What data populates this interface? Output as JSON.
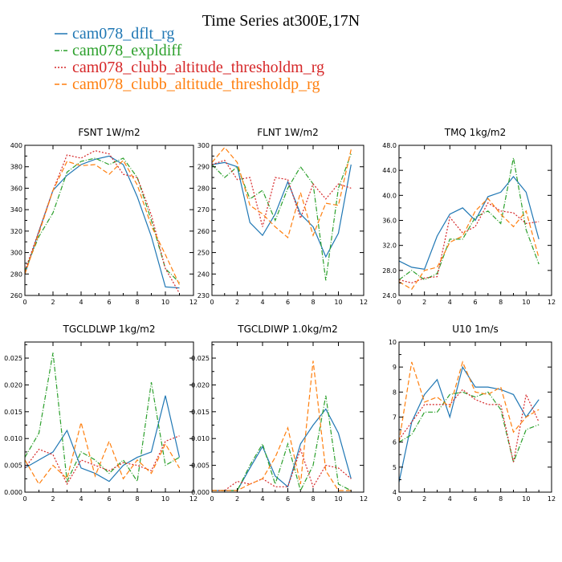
{
  "title": "Time Series at300E,17N",
  "colors": {
    "dflt": "#1f77b4",
    "expl": "#2ca02c",
    "thm": "#d62728",
    "thp": "#ff7f0e"
  },
  "legend": [
    {
      "label": "cam078_dflt_rg",
      "color": "#1f77b4",
      "dash": ""
    },
    {
      "label": "cam078_expldiff",
      "color": "#2ca02c",
      "dash": "6,2,1,2"
    },
    {
      "label": "cam078_clubb_altitude_thresholdm_rg",
      "color": "#d62728",
      "dash": "2,2"
    },
    {
      "label": "cam078_clubb_altitude_thresholdp_rg",
      "color": "#ff7f0e",
      "dash": "6,3"
    }
  ],
  "chart_data": [
    {
      "type": "line",
      "title": "FSNT   1W/m2",
      "xlim": [
        0,
        12
      ],
      "ylim": [
        260,
        400
      ],
      "xticks": [
        "0",
        "2",
        "4",
        "6",
        "8",
        "10",
        "12"
      ],
      "yticks": [
        "260",
        "280",
        "300",
        "320",
        "340",
        "360",
        "380",
        "400"
      ],
      "x": [
        0,
        1,
        2,
        3,
        4,
        5,
        6,
        7,
        8,
        9,
        10,
        11
      ],
      "series": [
        {
          "name": "cam078_dflt_rg",
          "values": [
            280,
            320,
            358,
            372,
            382,
            387,
            390,
            382,
            352,
            315,
            268,
            267
          ]
        },
        {
          "name": "cam078_expldiff",
          "values": [
            283,
            315,
            337,
            375,
            385,
            388,
            382,
            388,
            370,
            330,
            285,
            272
          ]
        },
        {
          "name": "cam078_clubb_altitude_thresholdm_rg",
          "values": [
            283,
            320,
            358,
            391,
            388,
            395,
            392,
            373,
            370,
            335,
            285,
            262
          ]
        },
        {
          "name": "cam078_clubb_altitude_thresholdp_rg",
          "values": [
            280,
            318,
            358,
            385,
            381,
            382,
            373,
            386,
            363,
            325,
            298,
            270
          ]
        }
      ]
    },
    {
      "type": "line",
      "title": "FLNT   1W/m2",
      "xlim": [
        0,
        12
      ],
      "ylim": [
        230,
        300
      ],
      "xticks": [
        "0",
        "2",
        "4",
        "6",
        "8",
        "10",
        "12"
      ],
      "yticks": [
        "230",
        "240",
        "250",
        "260",
        "270",
        "280",
        "290",
        "300"
      ],
      "x": [
        0,
        1,
        2,
        3,
        4,
        5,
        6,
        7,
        8,
        9,
        10,
        11
      ],
      "series": [
        {
          "name": "cam078_dflt_rg",
          "values": [
            291,
            292,
            290,
            264,
            258,
            268,
            283,
            268,
            262,
            248,
            259,
            291
          ]
        },
        {
          "name": "cam078_expldiff",
          "values": [
            291,
            285,
            290,
            275,
            279,
            265,
            280,
            290,
            282,
            237,
            280,
            296
          ]
        },
        {
          "name": "cam078_clubb_altitude_thresholdm_rg",
          "values": [
            291,
            293,
            284,
            285,
            262,
            285,
            284,
            266,
            282,
            275,
            282,
            280
          ]
        },
        {
          "name": "cam078_clubb_altitude_thresholdp_rg",
          "values": [
            292,
            299,
            292,
            272,
            268,
            262,
            257,
            278,
            258,
            273,
            272,
            298
          ]
        }
      ]
    },
    {
      "type": "line",
      "title": "TMQ   1kg/m2",
      "xlim": [
        0,
        12
      ],
      "ylim": [
        24,
        48
      ],
      "xticks": [
        "0",
        "2",
        "4",
        "6",
        "8",
        "10",
        "12"
      ],
      "yticks": [
        "24.0",
        "28.0",
        "32.0",
        "36.0",
        "40.0",
        "44.0",
        "48.0"
      ],
      "x": [
        0,
        1,
        2,
        3,
        4,
        5,
        6,
        7,
        8,
        9,
        10,
        11
      ],
      "series": [
        {
          "name": "cam078_dflt_rg",
          "values": [
            29.5,
            28.5,
            28.2,
            33.5,
            37.0,
            38.0,
            36.0,
            39.8,
            40.5,
            43.0,
            40.5,
            33.0
          ]
        },
        {
          "name": "cam078_expldiff",
          "values": [
            26.5,
            28.0,
            26.5,
            27.5,
            33.0,
            33.0,
            36.5,
            37.5,
            35.5,
            46.0,
            34.5,
            29.0
          ]
        },
        {
          "name": "cam078_clubb_altitude_thresholdm_rg",
          "values": [
            26.5,
            26.0,
            26.8,
            27.0,
            36.5,
            34.0,
            35.0,
            38.8,
            37.5,
            37.2,
            35.5,
            35.8
          ]
        },
        {
          "name": "cam078_clubb_altitude_thresholdp_rg",
          "values": [
            26.2,
            25.0,
            28.0,
            28.5,
            32.5,
            33.5,
            37.5,
            39.5,
            37.0,
            35.0,
            37.5,
            30.0
          ]
        }
      ]
    },
    {
      "type": "line",
      "title": "TGCLDLWP   1kg/m2",
      "xlim": [
        0,
        12
      ],
      "ylim": [
        0,
        0.028
      ],
      "xticks": [
        "0",
        "2",
        "4",
        "6",
        "8",
        "10",
        "12"
      ],
      "yticks": [
        "0.000",
        "0.005",
        "0.010",
        "0.015",
        "0.020",
        "0.025"
      ],
      "x": [
        0,
        1,
        2,
        3,
        4,
        5,
        6,
        7,
        8,
        9,
        10,
        11
      ],
      "series": [
        {
          "name": "cam078_dflt_rg",
          "values": [
            0.0045,
            0.006,
            0.0075,
            0.0115,
            0.0045,
            0.0035,
            0.002,
            0.005,
            0.0065,
            0.0075,
            0.018,
            0.0065
          ]
        },
        {
          "name": "cam078_expldiff",
          "values": [
            0.0065,
            0.011,
            0.026,
            0.002,
            0.0075,
            0.006,
            0.0035,
            0.006,
            0.002,
            0.0205,
            0.005,
            0.0065
          ]
        },
        {
          "name": "cam078_clubb_altitude_thresholdm_rg",
          "values": [
            0.0045,
            0.008,
            0.007,
            0.0015,
            0.006,
            0.005,
            0.004,
            0.0055,
            0.005,
            0.004,
            0.0095,
            0.0105
          ]
        },
        {
          "name": "cam078_clubb_altitude_thresholdp_rg",
          "values": [
            0.006,
            0.0015,
            0.005,
            0.0025,
            0.013,
            0.003,
            0.0095,
            0.0025,
            0.006,
            0.0035,
            0.009,
            0.0045
          ]
        }
      ]
    },
    {
      "type": "line",
      "title": "TGCLDIWP   1.0kg/m2",
      "xlim": [
        0,
        12
      ],
      "ylim": [
        0,
        0.028
      ],
      "xticks": [
        "0",
        "2",
        "4",
        "6",
        "8",
        "10",
        "12"
      ],
      "yticks": [
        "0.000",
        "0.005",
        "0.010",
        "0.015",
        "0.020",
        "0.025"
      ],
      "x": [
        0,
        1,
        2,
        3,
        4,
        5,
        6,
        7,
        8,
        9,
        10,
        11
      ],
      "series": [
        {
          "name": "cam078_dflt_rg",
          "values": [
            0.0003,
            0.0003,
            0.0003,
            0.0045,
            0.0085,
            0.003,
            0.001,
            0.009,
            0.0125,
            0.0155,
            0.011,
            0.0025
          ]
        },
        {
          "name": "cam078_expldiff",
          "values": [
            0.0003,
            0.0003,
            0.0003,
            0.005,
            0.009,
            0.0015,
            0.009,
            0.0003,
            0.005,
            0.018,
            0.0015,
            0.0003
          ]
        },
        {
          "name": "cam078_clubb_altitude_thresholdm_rg",
          "values": [
            0.0003,
            0.0003,
            0.002,
            0.0015,
            0.0025,
            0.001,
            0.001,
            0.008,
            0.001,
            0.005,
            0.0045,
            0.0025
          ]
        },
        {
          "name": "cam078_clubb_altitude_thresholdp_rg",
          "values": [
            0.0003,
            0.0003,
            0.0003,
            0.0015,
            0.0025,
            0.0065,
            0.012,
            0.0015,
            0.0245,
            0.004,
            0.0003,
            0.0003
          ]
        }
      ]
    },
    {
      "type": "line",
      "title": "U10   1m/s",
      "xlim": [
        0,
        12
      ],
      "ylim": [
        4,
        10
      ],
      "xticks": [
        "0",
        "2",
        "4",
        "6",
        "8",
        "10",
        "12"
      ],
      "yticks": [
        "4",
        "5",
        "6",
        "7",
        "8",
        "9",
        "10"
      ],
      "x": [
        0,
        1,
        2,
        3,
        4,
        5,
        6,
        7,
        8,
        9,
        10,
        11
      ],
      "series": [
        {
          "name": "cam078_dflt_rg",
          "values": [
            4.4,
            6.8,
            7.9,
            8.5,
            7.0,
            9.0,
            8.2,
            8.2,
            8.1,
            7.9,
            7.0,
            7.7
          ]
        },
        {
          "name": "cam078_expldiff",
          "values": [
            6.0,
            6.3,
            7.2,
            7.2,
            7.9,
            8.0,
            7.8,
            8.0,
            7.3,
            5.2,
            6.5,
            6.7
          ]
        },
        {
          "name": "cam078_clubb_altitude_thresholdm_rg",
          "values": [
            6.1,
            6.8,
            7.5,
            7.5,
            7.5,
            8.1,
            7.7,
            7.5,
            7.5,
            5.2,
            7.9,
            6.8
          ]
        },
        {
          "name": "cam078_clubb_altitude_thresholdp_rg",
          "values": [
            6.0,
            9.2,
            7.6,
            7.8,
            7.4,
            9.2,
            8.0,
            7.9,
            8.2,
            6.4,
            7.0,
            7.3
          ]
        }
      ]
    }
  ]
}
